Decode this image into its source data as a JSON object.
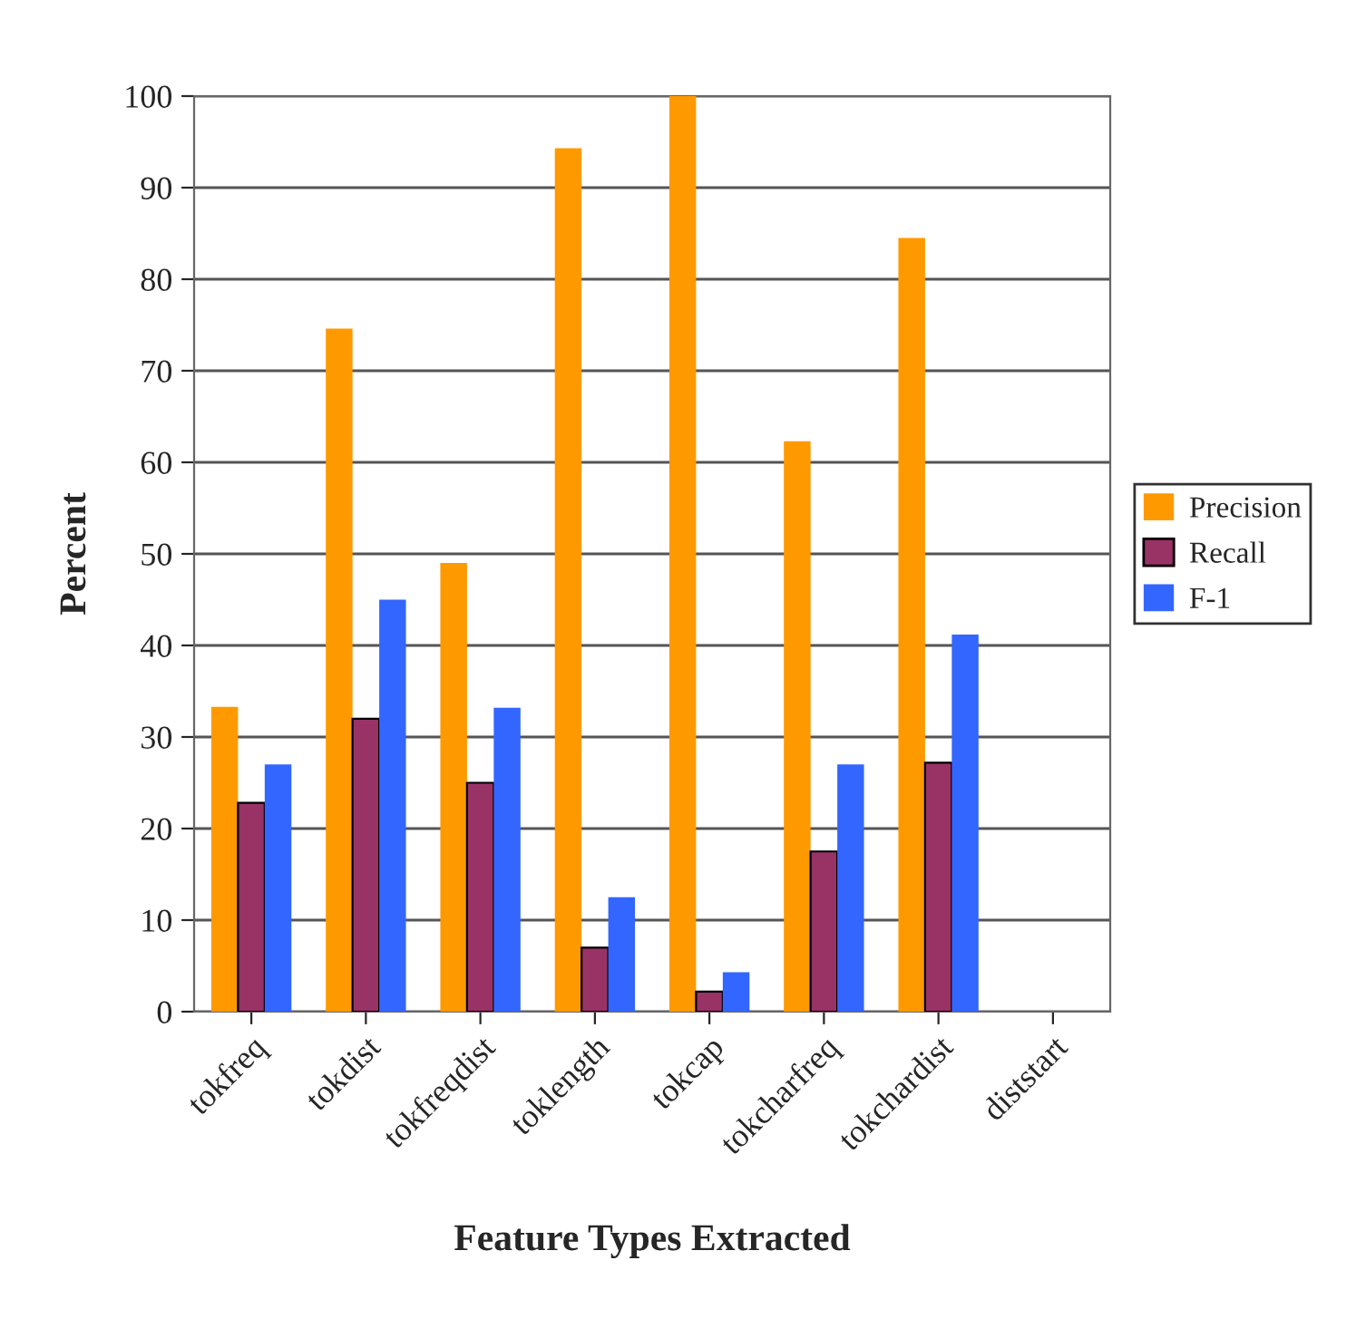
{
  "chart_data": {
    "type": "bar",
    "xlabel": "Feature Types Extracted",
    "ylabel": "Percent",
    "categories": [
      "tokfreq",
      "tokdist",
      "tokfreqdist",
      "toklength",
      "tokcap",
      "tokcharfreq",
      "tokchardist",
      "diststart"
    ],
    "series": [
      {
        "name": "Precision",
        "color": "#ff9900",
        "values": [
          33.3,
          74.6,
          49,
          94.3,
          100,
          62.3,
          84.5,
          null
        ]
      },
      {
        "name": "Recall",
        "color": "#993366",
        "values": [
          22.8,
          32,
          25,
          7,
          2.2,
          17.5,
          27.2,
          null
        ]
      },
      {
        "name": "F-1",
        "color": "#3366ff",
        "values": [
          27,
          45,
          33.2,
          12.5,
          4.3,
          27,
          41.2,
          null
        ]
      }
    ],
    "ylim": [
      0,
      100
    ],
    "yticks": [
      0,
      10,
      20,
      30,
      40,
      50,
      60,
      70,
      80,
      90,
      100
    ],
    "grid": "y",
    "legend": "right"
  }
}
